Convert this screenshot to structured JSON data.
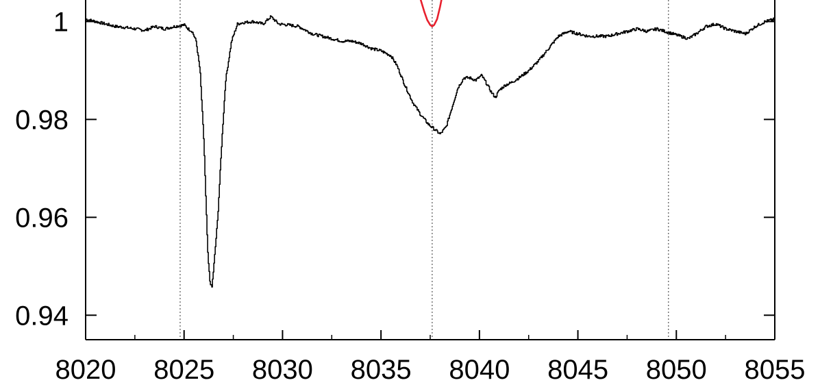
{
  "chart_data": {
    "type": "line",
    "title": "",
    "xlabel": "",
    "ylabel": "",
    "xlim": [
      8020,
      8055
    ],
    "ylim": [
      0.935,
      1.0044
    ],
    "x_ticks": [
      8020,
      8025,
      8030,
      8035,
      8040,
      8045,
      8050,
      8055
    ],
    "x_tick_labels": [
      "8020",
      "8025",
      "8030",
      "8035",
      "8040",
      "8045",
      "8050",
      "8055"
    ],
    "x_minor_step": 2.5,
    "y_ticks": [
      0.94,
      0.96,
      0.98,
      1.0
    ],
    "y_tick_labels": [
      "0.94",
      "0.96",
      "0.98",
      "1"
    ],
    "vertical_reference_lines": [
      8024.8,
      8037.6,
      8049.6
    ],
    "grid": false,
    "legend": "none",
    "series": [
      {
        "color": "#000000",
        "style": "step",
        "x": [
          8020.0,
          8020.5,
          8021.0,
          8021.5,
          8022.0,
          8022.5,
          8023.0,
          8023.5,
          8024.0,
          8024.5,
          8025.0,
          8025.2,
          8025.4,
          8025.6,
          8025.8,
          8026.0,
          8026.1,
          8026.2,
          8026.3,
          8026.4,
          8026.5,
          8026.7,
          8026.9,
          8027.1,
          8027.4,
          8027.7,
          8028.0,
          8028.5,
          8029.0,
          8029.4,
          8029.8,
          8030.3,
          8030.8,
          8031.5,
          8032.0,
          8032.5,
          8033.0,
          8033.5,
          8034.0,
          8034.5,
          8035.0,
          8035.5,
          8035.8,
          8036.2,
          8036.6,
          8037.0,
          8037.4,
          8037.7,
          8038.0,
          8038.3,
          8038.6,
          8038.9,
          8039.2,
          8039.5,
          8039.8,
          8040.1,
          8040.4,
          8040.6,
          8040.8,
          8041.0,
          8041.3,
          8041.6,
          8042.0,
          8042.5,
          8043.0,
          8043.5,
          8044.0,
          8044.5,
          8045.0,
          8045.5,
          8046.0,
          8046.5,
          8047.0,
          8047.5,
          8048.0,
          8048.5,
          8049.0,
          8049.4,
          8049.8,
          8050.2,
          8050.6,
          8051.0,
          8051.5,
          8052.0,
          8052.5,
          8053.0,
          8053.5,
          8054.0,
          8054.5,
          8055.0
        ],
        "y": [
          1.0005,
          1.0,
          0.9995,
          0.999,
          0.9988,
          0.9985,
          0.9982,
          0.999,
          0.9985,
          0.999,
          0.9993,
          0.9985,
          0.998,
          0.996,
          0.99,
          0.975,
          0.963,
          0.952,
          0.947,
          0.9455,
          0.95,
          0.96,
          0.975,
          0.988,
          0.996,
          0.9995,
          0.9998,
          1.0,
          0.9995,
          1.001,
          0.9995,
          0.9993,
          0.999,
          0.9975,
          0.997,
          0.9965,
          0.996,
          0.996,
          0.9955,
          0.9945,
          0.994,
          0.993,
          0.991,
          0.987,
          0.9835,
          0.981,
          0.979,
          0.978,
          0.977,
          0.9785,
          0.9825,
          0.9865,
          0.9885,
          0.9885,
          0.988,
          0.989,
          0.987,
          0.9855,
          0.9845,
          0.986,
          0.987,
          0.9875,
          0.9885,
          0.99,
          0.992,
          0.9945,
          0.997,
          0.998,
          0.9975,
          0.997,
          0.997,
          0.997,
          0.9975,
          0.998,
          0.9985,
          0.998,
          0.9985,
          0.998,
          0.9975,
          0.997,
          0.9965,
          0.9975,
          0.999,
          0.9995,
          0.9985,
          0.998,
          0.9975,
          0.999,
          1.0,
          1.0005
        ]
      },
      {
        "color": "#e8202e",
        "style": "line",
        "x": [
          8036.9,
          8037.05,
          8037.2,
          8037.35,
          8037.5,
          8037.6,
          8037.7,
          8037.85,
          8038.0,
          8038.15
        ],
        "y": [
          1.006,
          1.004,
          1.002,
          1.0003,
          0.9993,
          0.999,
          0.9993,
          1.0005,
          1.003,
          1.006
        ]
      }
    ]
  }
}
